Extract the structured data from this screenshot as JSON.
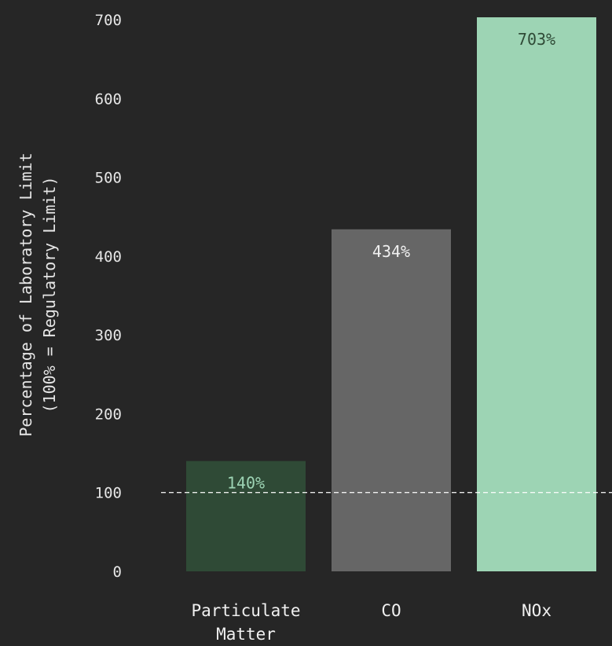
{
  "chart_data": {
    "type": "bar",
    "categories": [
      "Particulate Matter",
      "CO",
      "NOx"
    ],
    "category_lines": [
      [
        "Particulate",
        "Matter"
      ],
      [
        "CO"
      ],
      [
        "NOx"
      ]
    ],
    "values": [
      140,
      434,
      703
    ],
    "data_labels": [
      "140%",
      "434%",
      "703%"
    ],
    "bar_colors": [
      "#2f4a36",
      "#666666",
      "#9dd4b4"
    ],
    "data_label_colors": [
      "#9dd4b4",
      "#f0f0f0",
      "#2f4a36"
    ],
    "ylabel_lines": [
      "Percentage of Laboratory Limit",
      "(100% = Regulatory Limit)"
    ],
    "xlabel": "",
    "ylim": [
      0,
      705
    ],
    "yticks": [
      0,
      100,
      200,
      300,
      400,
      500,
      600,
      700
    ],
    "reference_line": {
      "value": 100,
      "style": "dashed",
      "color": "#ffffff"
    },
    "grid": false,
    "background": "#262626"
  }
}
